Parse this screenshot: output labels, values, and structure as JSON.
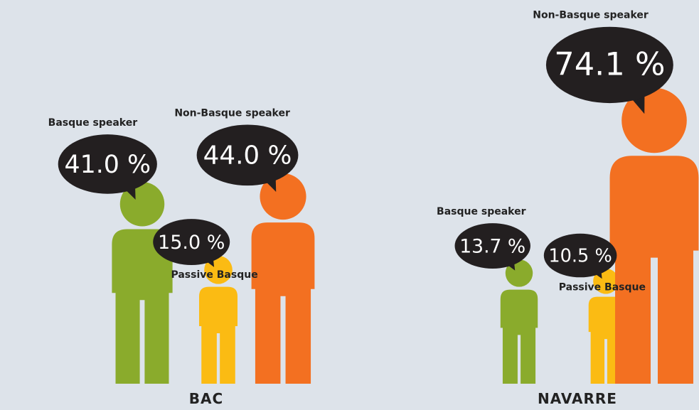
{
  "chart_data": [
    {
      "type": "pictogram",
      "title": "BAC",
      "categories": [
        "Basque speaker",
        "Passive Basque",
        "Non-Basque speaker"
      ],
      "values": [
        41.0,
        15.0,
        44.0
      ],
      "value_labels": [
        "41.0 %",
        "15.0 %",
        "44.0 %"
      ],
      "colors": [
        "#8aab2c",
        "#fbbb13",
        "#f37021"
      ]
    },
    {
      "type": "pictogram",
      "title": "NAVARRE",
      "categories": [
        "Basque speaker",
        "Passive Basque",
        "Non-Basque speaker"
      ],
      "values": [
        13.7,
        10.5,
        74.1
      ],
      "value_labels": [
        "13.7 %",
        "10.5 %",
        "74.1 %"
      ],
      "colors": [
        "#8aab2c",
        "#fbbb13",
        "#f37021"
      ]
    }
  ]
}
